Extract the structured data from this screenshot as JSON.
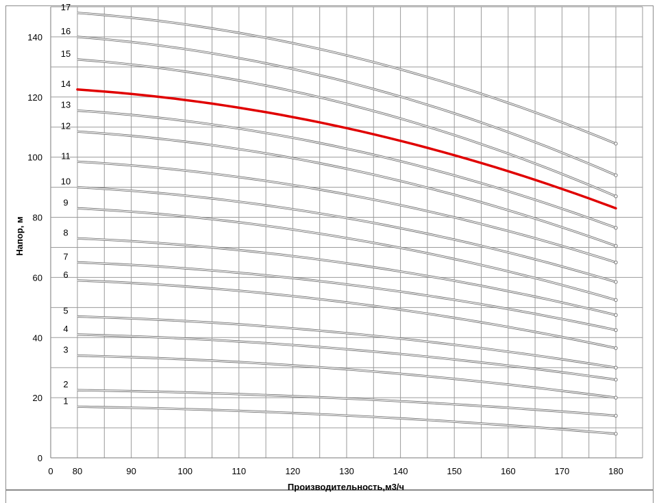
{
  "chart_data": {
    "type": "line",
    "xlabel": "Производительность,м3/ч",
    "ylabel": "Напор, м",
    "xlim": [
      0,
      180
    ],
    "ylim": [
      0,
      150
    ],
    "x_ticks": [
      "0",
      "80",
      "90",
      "100",
      "110",
      "120",
      "130",
      "140",
      "150",
      "160",
      "170",
      "180"
    ],
    "y_ticks": [
      "0",
      "20",
      "40",
      "60",
      "80",
      "100",
      "120",
      "140"
    ],
    "grid": true,
    "highlight_color": "#e00000",
    "curve_color": "#b4b4b4",
    "x": [
      80,
      180
    ],
    "series": [
      {
        "name": "1",
        "values": [
          17.0,
          8.0
        ]
      },
      {
        "name": "2",
        "values": [
          22.5,
          14.0
        ]
      },
      {
        "name": "3",
        "values": [
          34.0,
          20.0
        ]
      },
      {
        "name": "4",
        "values": [
          41.0,
          26.0
        ]
      },
      {
        "name": "5",
        "values": [
          47.0,
          30.0
        ]
      },
      {
        "name": "6",
        "values": [
          59.0,
          36.5
        ]
      },
      {
        "name": "7",
        "values": [
          65.0,
          42.5
        ]
      },
      {
        "name": "8",
        "values": [
          73.0,
          47.5
        ]
      },
      {
        "name": "9",
        "values": [
          83.0,
          52.5
        ]
      },
      {
        "name": "10",
        "values": [
          90.0,
          58.5
        ]
      },
      {
        "name": "11",
        "values": [
          98.5,
          65.0
        ]
      },
      {
        "name": "12",
        "values": [
          108.5,
          70.5
        ]
      },
      {
        "name": "13",
        "values": [
          115.5,
          76.5
        ]
      },
      {
        "name": "14",
        "values": [
          122.5,
          83.0
        ],
        "highlight": true
      },
      {
        "name": "15",
        "values": [
          132.5,
          87.0
        ]
      },
      {
        "name": "16",
        "values": [
          140.0,
          94.0
        ]
      },
      {
        "name": "17",
        "values": [
          148.0,
          104.5
        ]
      }
    ]
  }
}
